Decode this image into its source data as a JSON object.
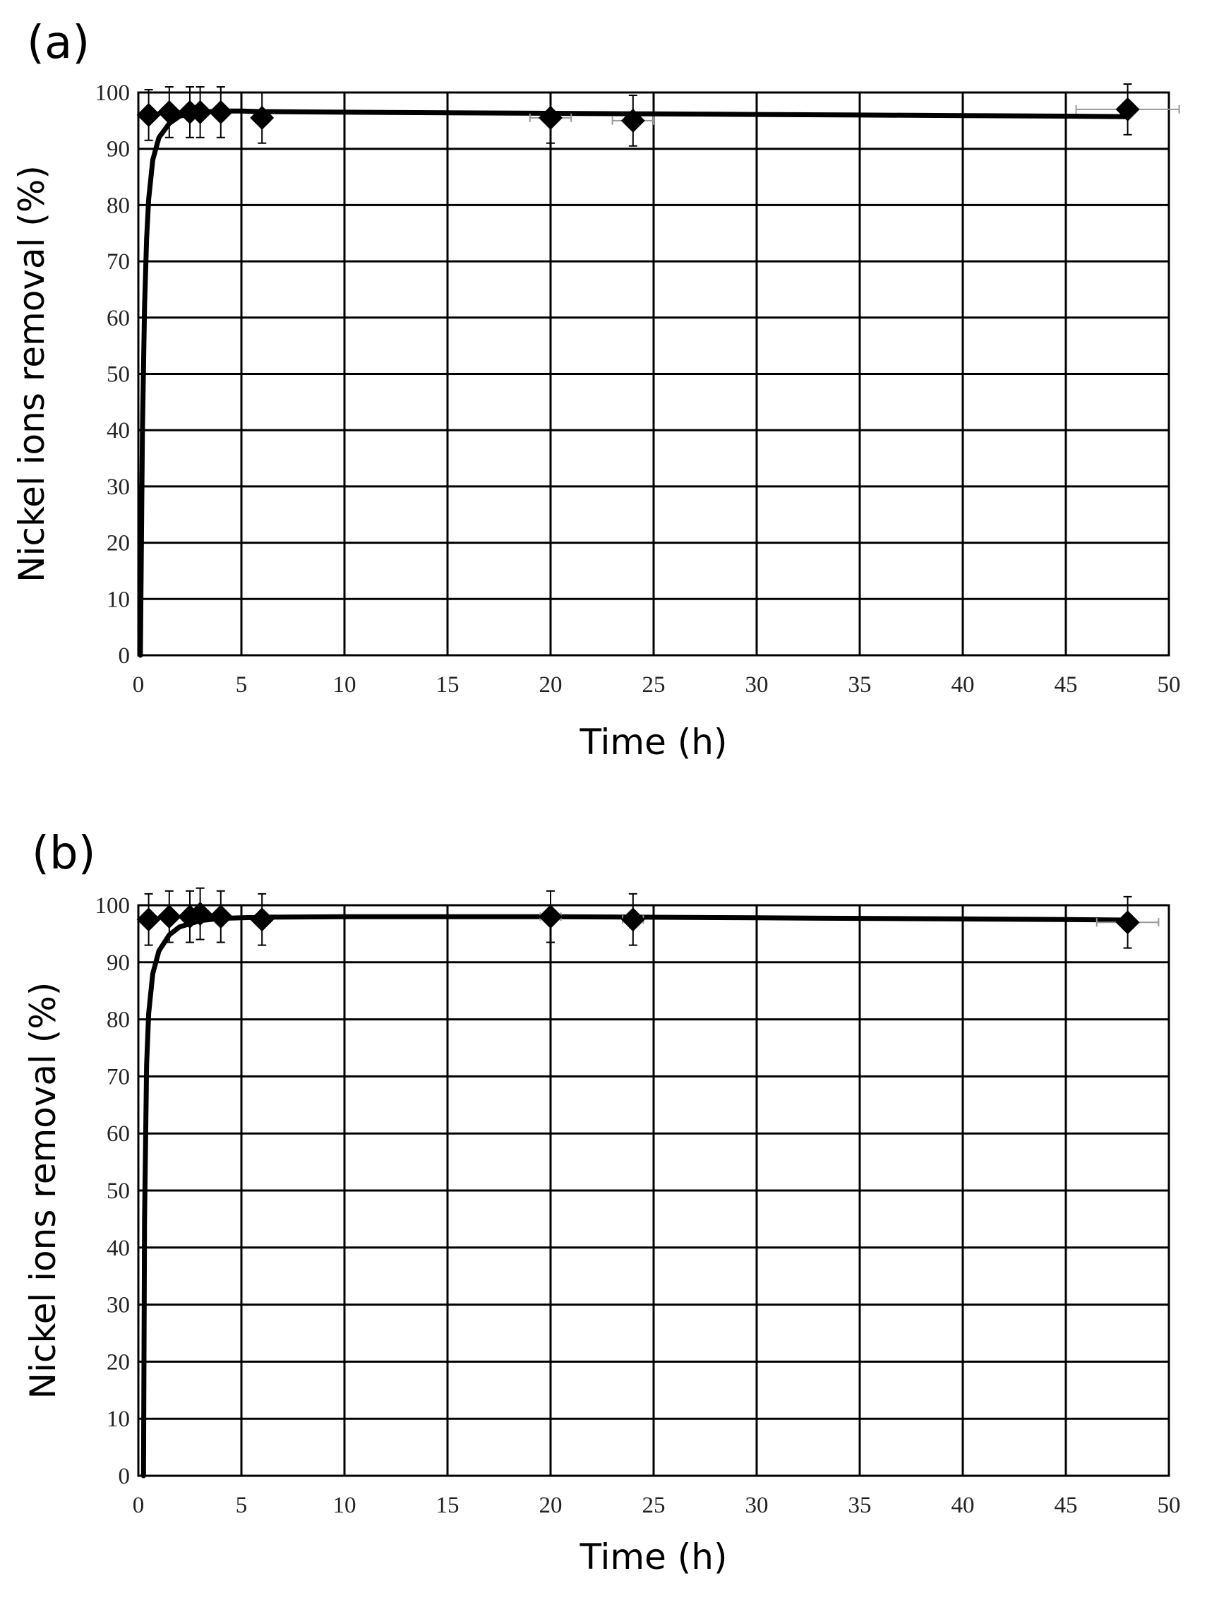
{
  "chart_data": [
    {
      "type": "scatter",
      "panel_label": "(a)",
      "title": "",
      "xlabel": "Time (h)",
      "ylabel": "Nickel ions removal (%)",
      "xlim": [
        0,
        50
      ],
      "ylim": [
        0,
        100
      ],
      "x_ticks": [
        0,
        5,
        10,
        15,
        20,
        25,
        30,
        35,
        40,
        45,
        50
      ],
      "y_ticks": [
        0,
        10,
        20,
        30,
        40,
        50,
        60,
        70,
        80,
        90,
        100
      ],
      "grid": true,
      "legend": "none",
      "series": [
        {
          "x": [
            0.5,
            1.5,
            2.5,
            3,
            4,
            6,
            20,
            24,
            48
          ],
          "y": [
            96,
            96.5,
            96.5,
            96.5,
            96.5,
            95.5,
            95.5,
            95,
            97
          ],
          "y_err": [
            4.5,
            4.5,
            4.5,
            4.5,
            4.5,
            4.5,
            4.5,
            4.5,
            4.5
          ],
          "x_err": [
            0,
            0,
            0,
            0,
            0,
            0,
            1,
            1,
            2.5
          ],
          "marker": "diamond",
          "color": "#000000"
        }
      ],
      "fit_curve": {
        "x": [
          0.1,
          0.2,
          0.3,
          0.4,
          0.5,
          0.7,
          1,
          1.5,
          2,
          3,
          4,
          5,
          6,
          10,
          15,
          20,
          25,
          30,
          35,
          40,
          45,
          48
        ],
        "y": [
          0,
          40,
          62,
          74,
          81,
          88,
          92,
          94.5,
          95.8,
          96.5,
          96.7,
          96.7,
          96.6,
          96.5,
          96.4,
          96.3,
          96.2,
          96.1,
          96,
          95.9,
          95.8,
          95.7
        ]
      }
    },
    {
      "type": "scatter",
      "panel_label": "(b)",
      "title": "",
      "xlabel": "Time (h)",
      "ylabel": "Nickel ions removal (%)",
      "xlim": [
        0,
        50
      ],
      "ylim": [
        0,
        100
      ],
      "x_ticks": [
        0,
        5,
        10,
        15,
        20,
        25,
        30,
        35,
        40,
        45,
        50
      ],
      "y_ticks": [
        0,
        10,
        20,
        30,
        40,
        50,
        60,
        70,
        80,
        90,
        100
      ],
      "grid": true,
      "legend": "none",
      "series": [
        {
          "x": [
            0.5,
            1.5,
            2.5,
            3,
            4,
            6,
            20,
            24,
            48
          ],
          "y": [
            97.5,
            98,
            98,
            98.5,
            98,
            97.5,
            98,
            97.5,
            97
          ],
          "y_err": [
            4.5,
            4.5,
            4.5,
            4.5,
            4.5,
            4.5,
            4.5,
            4.5,
            4.5
          ],
          "x_err": [
            0,
            0,
            0,
            0,
            0,
            0,
            0.5,
            0.5,
            1.5
          ],
          "marker": "diamond",
          "color": "#000000"
        }
      ],
      "fit_curve": {
        "x": [
          0.25,
          0.3,
          0.4,
          0.5,
          0.7,
          1,
          1.5,
          2,
          3,
          4,
          5,
          6,
          10,
          15,
          20,
          25,
          30,
          35,
          40,
          45,
          48
        ],
        "y": [
          0,
          45,
          72,
          81,
          88,
          92,
          94.8,
          96.2,
          97.3,
          97.7,
          97.8,
          97.9,
          98,
          98,
          98,
          97.9,
          97.8,
          97.7,
          97.6,
          97.5,
          97.4
        ]
      }
    }
  ]
}
